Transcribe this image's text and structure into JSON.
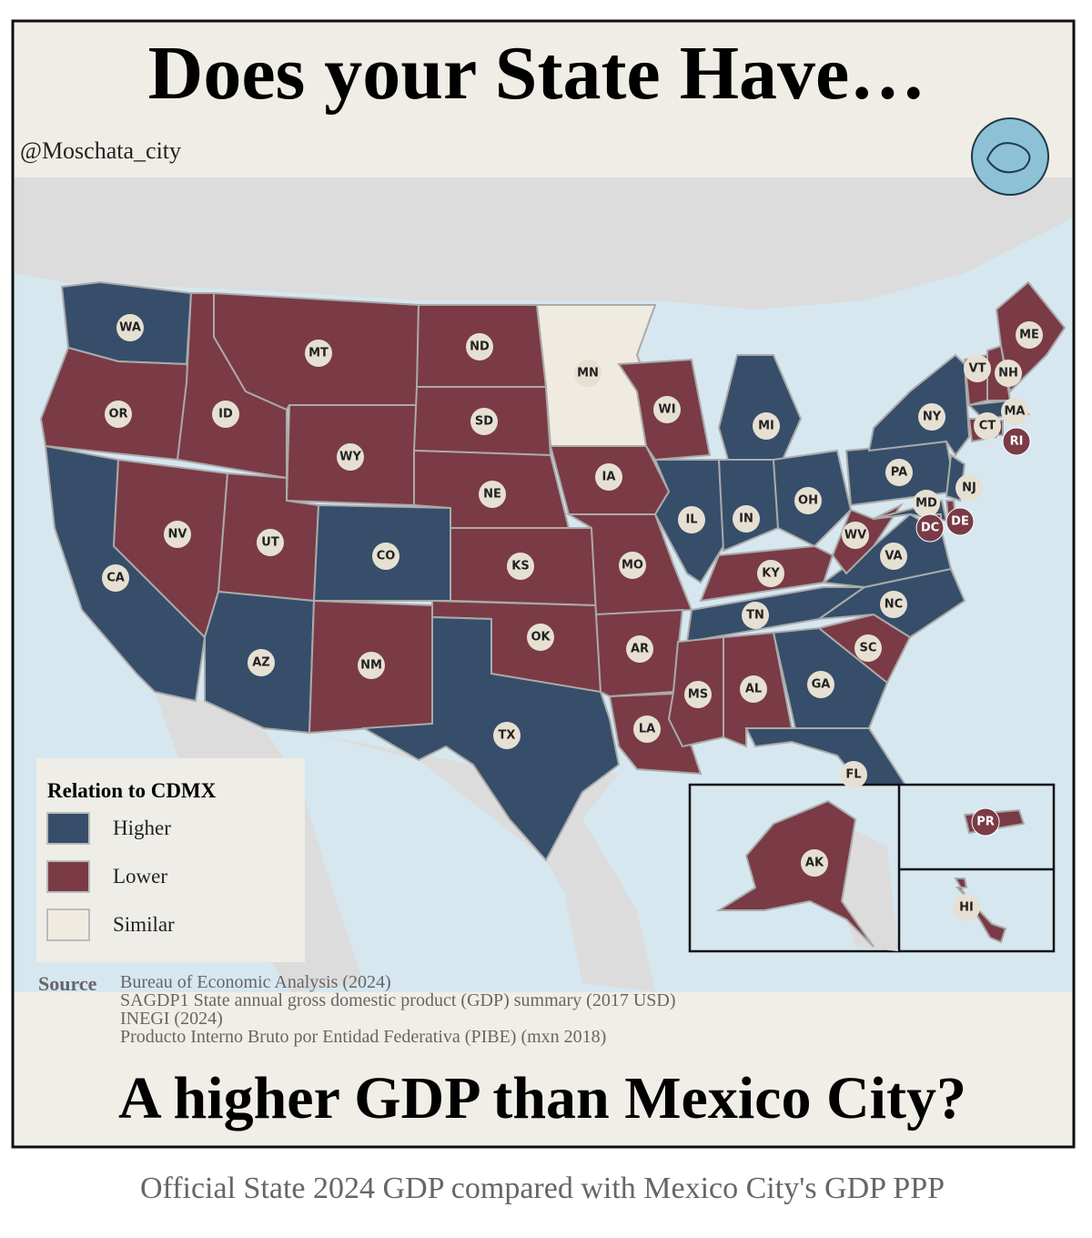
{
  "header": {
    "title": "Does your State Have…",
    "handle": "@Moschata_city"
  },
  "legend": {
    "title": "Relation to CDMX",
    "items": [
      {
        "label": "Higher",
        "color": "#364e6a"
      },
      {
        "label": "Lower",
        "color": "#7a3b46"
      },
      {
        "label": "Similar",
        "color": "#efebe0"
      }
    ]
  },
  "states": [
    {
      "abbr": "WA",
      "status": 0
    },
    {
      "abbr": "OR",
      "status": 1
    },
    {
      "abbr": "CA",
      "status": 0
    },
    {
      "abbr": "ID",
      "status": 1
    },
    {
      "abbr": "NV",
      "status": 1
    },
    {
      "abbr": "MT",
      "status": 1
    },
    {
      "abbr": "WY",
      "status": 1
    },
    {
      "abbr": "UT",
      "status": 1
    },
    {
      "abbr": "AZ",
      "status": 0
    },
    {
      "abbr": "CO",
      "status": 0
    },
    {
      "abbr": "NM",
      "status": 1
    },
    {
      "abbr": "ND",
      "status": 1
    },
    {
      "abbr": "SD",
      "status": 1
    },
    {
      "abbr": "NE",
      "status": 1
    },
    {
      "abbr": "KS",
      "status": 1
    },
    {
      "abbr": "OK",
      "status": 1
    },
    {
      "abbr": "TX",
      "status": 0
    },
    {
      "abbr": "MN",
      "status": 2
    },
    {
      "abbr": "IA",
      "status": 1
    },
    {
      "abbr": "MO",
      "status": 1
    },
    {
      "abbr": "AR",
      "status": 1
    },
    {
      "abbr": "LA",
      "status": 1
    },
    {
      "abbr": "WI",
      "status": 1
    },
    {
      "abbr": "IL",
      "status": 0
    },
    {
      "abbr": "MI",
      "status": 0
    },
    {
      "abbr": "IN",
      "status": 0
    },
    {
      "abbr": "OH",
      "status": 0
    },
    {
      "abbr": "KY",
      "status": 1
    },
    {
      "abbr": "TN",
      "status": 0
    },
    {
      "abbr": "MS",
      "status": 1
    },
    {
      "abbr": "AL",
      "status": 1
    },
    {
      "abbr": "GA",
      "status": 0
    },
    {
      "abbr": "FL",
      "status": 0
    },
    {
      "abbr": "SC",
      "status": 1
    },
    {
      "abbr": "NC",
      "status": 0
    },
    {
      "abbr": "VA",
      "status": 0
    },
    {
      "abbr": "WV",
      "status": 1
    },
    {
      "abbr": "PA",
      "status": 0
    },
    {
      "abbr": "NY",
      "status": 0
    },
    {
      "abbr": "VT",
      "status": 1
    },
    {
      "abbr": "NH",
      "status": 1
    },
    {
      "abbr": "ME",
      "status": 1
    },
    {
      "abbr": "MA",
      "status": 0
    },
    {
      "abbr": "CT",
      "status": 1
    },
    {
      "abbr": "RI",
      "status": 1
    },
    {
      "abbr": "NJ",
      "status": 0
    },
    {
      "abbr": "DE",
      "status": 1
    },
    {
      "abbr": "MD",
      "status": 0
    },
    {
      "abbr": "DC",
      "status": 1
    },
    {
      "abbr": "AK",
      "status": 1
    },
    {
      "abbr": "HI",
      "status": 1
    },
    {
      "abbr": "PR",
      "status": 1
    }
  ],
  "source": {
    "label": "Source",
    "lines": [
      "Bureau of Economic Analysis (2024)",
      "SAGDP1 State annual gross domestic product (GDP) summary (2017 USD)",
      "INEGI (2024)",
      "Producto Interno Bruto por Entidad Federativa (PIBE) (mxn 2018)"
    ]
  },
  "footer": {
    "title": "A higher GDP than Mexico City?",
    "subtitle": "Official State 2024 GDP compared with Mexico City's GDP PPP"
  }
}
